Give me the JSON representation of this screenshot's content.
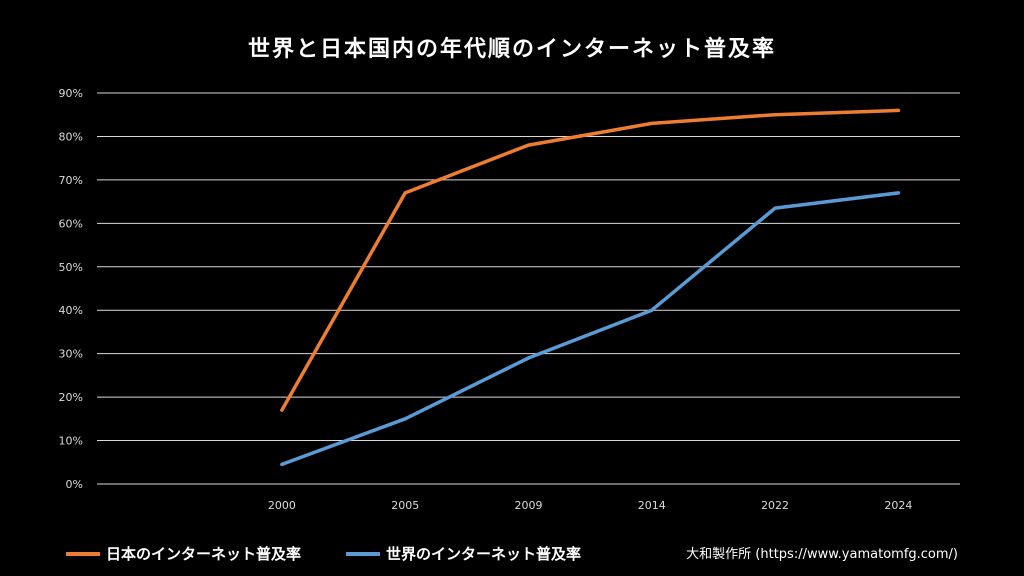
{
  "chart_data": {
    "type": "line",
    "title": "世界と日本国内の年代順のインターネット普及率",
    "categories": [
      "2000",
      "2005",
      "2009",
      "2014",
      "2022",
      "2024"
    ],
    "series": [
      {
        "name": "日本のインターネット普及率",
        "color": "#ed7d31",
        "values": [
          17,
          67,
          78,
          83,
          85,
          86
        ]
      },
      {
        "name": "世界のインターネット普及率",
        "color": "#5b9bd5",
        "values": [
          4.5,
          15,
          29,
          40,
          63.5,
          67
        ]
      }
    ],
    "ylim": [
      0,
      90
    ],
    "yticks": [
      "0%",
      "10%",
      "20%",
      "30%",
      "40%",
      "50%",
      "60%",
      "70%",
      "80%",
      "90%"
    ],
    "grid": true,
    "legend_position": "bottom-left"
  },
  "credit": "大和製作所 (https://www.yamatomfg.com/)",
  "colors": {
    "background": "#000000",
    "gridline": "#d9d9d9",
    "text": "#ffffff"
  }
}
